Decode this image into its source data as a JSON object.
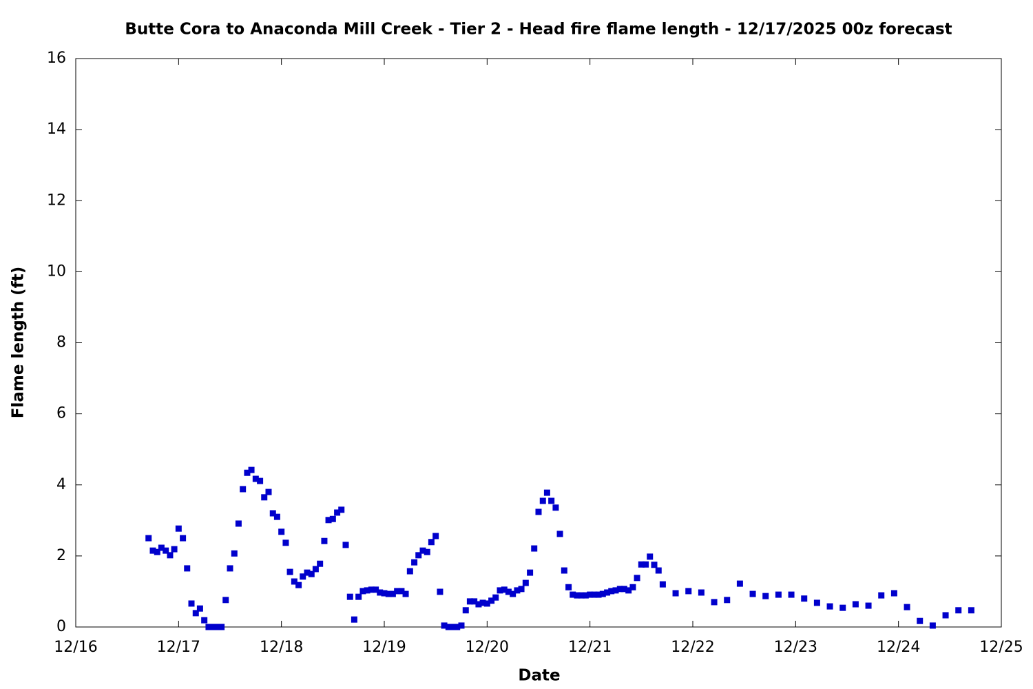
{
  "chart_data": {
    "type": "scatter",
    "title": "Butte Cora to Anaconda Mill Creek - Tier 2 - Head fire flame length - 12/17/2025 00z forecast",
    "x_label": "Date",
    "y_label": "Flame length (ft)",
    "xlim": [
      16,
      25
    ],
    "ylim": [
      0,
      16
    ],
    "xticks": [
      {
        "value": 16,
        "label": "12/16"
      },
      {
        "value": 17,
        "label": "12/17"
      },
      {
        "value": 18,
        "label": "12/18"
      },
      {
        "value": 19,
        "label": "12/19"
      },
      {
        "value": 20,
        "label": "12/20"
      },
      {
        "value": 21,
        "label": "12/21"
      },
      {
        "value": 22,
        "label": "12/22"
      },
      {
        "value": 23,
        "label": "12/23"
      },
      {
        "value": 24,
        "label": "12/24"
      },
      {
        "value": 25,
        "label": "12/25"
      }
    ],
    "yticks": [
      0,
      2,
      4,
      6,
      8,
      10,
      12,
      14,
      16
    ],
    "grid": false,
    "series": [
      {
        "color": "#0000cc",
        "x": [
          16.708,
          16.75,
          16.792,
          16.833,
          16.875,
          16.917,
          16.958,
          17.0,
          17.042,
          17.083,
          17.125,
          17.167,
          17.208,
          17.25,
          17.292,
          17.333,
          17.375,
          17.417,
          17.458,
          17.5,
          17.542,
          17.583,
          17.625,
          17.667,
          17.708,
          17.75,
          17.792,
          17.833,
          17.875,
          17.917,
          17.958,
          18.0,
          18.042,
          18.083,
          18.125,
          18.167,
          18.208,
          18.25,
          18.292,
          18.333,
          18.375,
          18.417,
          18.458,
          18.5,
          18.542,
          18.583,
          18.625,
          18.667,
          18.708,
          18.75,
          18.792,
          18.833,
          18.875,
          18.917,
          18.958,
          19.0,
          19.042,
          19.083,
          19.125,
          19.167,
          19.208,
          19.25,
          19.292,
          19.333,
          19.375,
          19.417,
          19.458,
          19.5,
          19.542,
          19.583,
          19.625,
          19.667,
          19.708,
          19.75,
          19.792,
          19.833,
          19.875,
          19.917,
          19.958,
          20.0,
          20.042,
          20.083,
          20.125,
          20.167,
          20.208,
          20.25,
          20.292,
          20.333,
          20.375,
          20.417,
          20.458,
          20.5,
          20.542,
          20.583,
          20.625,
          20.667,
          20.708,
          20.75,
          20.792,
          20.833,
          20.875,
          20.917,
          20.958,
          21.0,
          21.042,
          21.083,
          21.125,
          21.167,
          21.208,
          21.25,
          21.292,
          21.333,
          21.375,
          21.417,
          21.458,
          21.5,
          21.542,
          21.583,
          21.625,
          21.667,
          21.708,
          21.833,
          21.958,
          22.083,
          22.208,
          22.333,
          22.458,
          22.583,
          22.708,
          22.833,
          22.958,
          23.083,
          23.208,
          23.333,
          23.458,
          23.583,
          23.708,
          23.833,
          23.958,
          24.083,
          24.208,
          24.333,
          24.458,
          24.583,
          24.708
        ],
        "values": [
          2.5,
          2.15,
          2.11,
          2.23,
          2.15,
          2.02,
          2.19,
          2.77,
          2.5,
          1.65,
          0.66,
          0.39,
          0.52,
          0.19,
          0,
          0,
          0,
          0,
          0.76,
          1.65,
          2.07,
          2.91,
          3.88,
          4.34,
          4.42,
          4.17,
          4.11,
          3.65,
          3.8,
          3.2,
          3.1,
          2.68,
          2.37,
          1.55,
          1.28,
          1.18,
          1.42,
          1.53,
          1.49,
          1.63,
          1.78,
          2.42,
          3.01,
          3.04,
          3.22,
          3.3,
          2.31,
          0.85,
          0.21,
          0.85,
          1.01,
          1.03,
          1.05,
          1.05,
          0.97,
          0.95,
          0.93,
          0.93,
          1.01,
          1.01,
          0.93,
          1.57,
          1.82,
          2.02,
          2.15,
          2.11,
          2.39,
          2.56,
          0.99,
          0.04,
          0,
          0,
          0,
          0.04,
          0.47,
          0.72,
          0.72,
          0.64,
          0.68,
          0.66,
          0.74,
          0.83,
          1.03,
          1.05,
          0.99,
          0.93,
          1.03,
          1.07,
          1.24,
          1.53,
          2.21,
          3.24,
          3.55,
          3.78,
          3.55,
          3.36,
          2.62,
          1.59,
          1.12,
          0.91,
          0.89,
          0.89,
          0.89,
          0.91,
          0.91,
          0.91,
          0.93,
          0.97,
          1.01,
          1.03,
          1.07,
          1.07,
          1.03,
          1.12,
          1.38,
          1.76,
          1.76,
          1.98,
          1.75,
          1.59,
          1.2,
          0.95,
          1.01,
          0.97,
          0.7,
          0.76,
          1.22,
          0.93,
          0.87,
          0.91,
          0.91,
          0.8,
          0.68,
          0.58,
          0.54,
          0.64,
          0.6,
          0.89,
          0.95,
          0.56,
          0.17,
          0.04,
          0.33,
          0.47,
          0.47
        ]
      }
    ]
  }
}
